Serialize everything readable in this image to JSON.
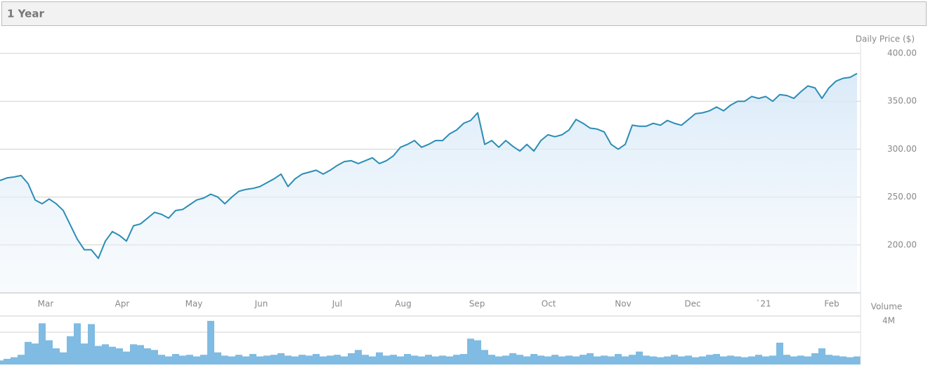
{
  "header": {
    "title": "1 Year"
  },
  "chart_data": [
    {
      "type": "line",
      "y_label": "Daily Price ($)",
      "grid": true,
      "xlim": [
        0,
        122
      ],
      "xticks": [
        {
          "value": 6.5,
          "label": "Mar"
        },
        {
          "value": 17.4,
          "label": "Apr"
        },
        {
          "value": 27.6,
          "label": "May"
        },
        {
          "value": 37.2,
          "label": "Jun"
        },
        {
          "value": 48,
          "label": "Jul"
        },
        {
          "value": 57.4,
          "label": "Aug"
        },
        {
          "value": 67.9,
          "label": "Sep"
        },
        {
          "value": 78.1,
          "label": "Oct"
        },
        {
          "value": 88.7,
          "label": "Nov"
        },
        {
          "value": 98.6,
          "label": "Dec"
        },
        {
          "value": 108.7,
          "label": "`21"
        },
        {
          "value": 118.4,
          "label": "Feb"
        }
      ],
      "ylim": [
        150,
        400
      ],
      "yticks": [
        {
          "value": 200,
          "label": "200.00"
        },
        {
          "value": 250,
          "label": "250.00"
        },
        {
          "value": 300,
          "label": "300.00"
        },
        {
          "value": 350,
          "label": "350.00"
        },
        {
          "value": 400,
          "label": "400.00"
        }
      ],
      "series": [
        {
          "color": "#2b8db5",
          "values": [
            267.3,
            270,
            271,
            272.5,
            264,
            247,
            243,
            248,
            243,
            236,
            221,
            206,
            195,
            195,
            186,
            204,
            214,
            210,
            204,
            220,
            222,
            228,
            234,
            232,
            228,
            236,
            237,
            242,
            247,
            249,
            253,
            250,
            243,
            250,
            256,
            258,
            259,
            261,
            265,
            269,
            274,
            261,
            269,
            274,
            276,
            278,
            274,
            278,
            283,
            287,
            288,
            285,
            288,
            291,
            285,
            288,
            293,
            302,
            305,
            309,
            302,
            305,
            309,
            309,
            316,
            320,
            327,
            330,
            338,
            305,
            309,
            302,
            309,
            303,
            298,
            305,
            298,
            309,
            315,
            313,
            315,
            320,
            331,
            327,
            322,
            321,
            318,
            305,
            300,
            305,
            325,
            324,
            324,
            327,
            325,
            330,
            327,
            325,
            331,
            337,
            338,
            340,
            344,
            340,
            346,
            350,
            350,
            355,
            353,
            355,
            350,
            357,
            356,
            353,
            360,
            366,
            364,
            353,
            364,
            371,
            374,
            375,
            379
          ]
        }
      ]
    },
    {
      "type": "bar",
      "y_label": "Volume",
      "color": "#7fbbe2",
      "ylim": [
        0,
        6
      ],
      "yticks": [
        {
          "value": 4,
          "label": "4M"
        }
      ],
      "values": [
        0.5,
        0.7,
        0.9,
        1.2,
        2.8,
        2.6,
        5.1,
        3.0,
        2.0,
        1.5,
        3.5,
        5.1,
        2.6,
        5.0,
        2.3,
        2.5,
        2.2,
        2.0,
        1.6,
        2.5,
        2.4,
        2.0,
        1.8,
        1.2,
        1.0,
        1.3,
        1.1,
        1.2,
        1.0,
        1.2,
        5.4,
        1.5,
        1.1,
        1.0,
        1.2,
        1.0,
        1.3,
        1.0,
        1.1,
        1.2,
        1.4,
        1.1,
        1.0,
        1.2,
        1.1,
        1.3,
        1.0,
        1.1,
        1.2,
        1.0,
        1.4,
        1.8,
        1.2,
        1.0,
        1.5,
        1.1,
        1.2,
        1.0,
        1.3,
        1.1,
        1.0,
        1.2,
        1.0,
        1.1,
        1.0,
        1.2,
        1.3,
        3.2,
        3.0,
        1.8,
        1.2,
        1.0,
        1.1,
        1.4,
        1.2,
        1.0,
        1.3,
        1.1,
        1.0,
        1.2,
        1.0,
        1.1,
        1.0,
        1.2,
        1.4,
        1.0,
        1.1,
        1.0,
        1.3,
        1.0,
        1.2,
        1.6,
        1.1,
        1.0,
        0.9,
        1.0,
        1.2,
        1.0,
        1.1,
        0.9,
        1.0,
        1.2,
        1.3,
        1.0,
        1.1,
        1.0,
        0.9,
        1.0,
        1.2,
        1.0,
        1.1,
        2.7,
        1.2,
        1.0,
        1.1,
        1.0,
        1.4,
        2.0,
        1.2,
        1.1,
        1.0,
        0.9,
        1.0
      ]
    }
  ]
}
